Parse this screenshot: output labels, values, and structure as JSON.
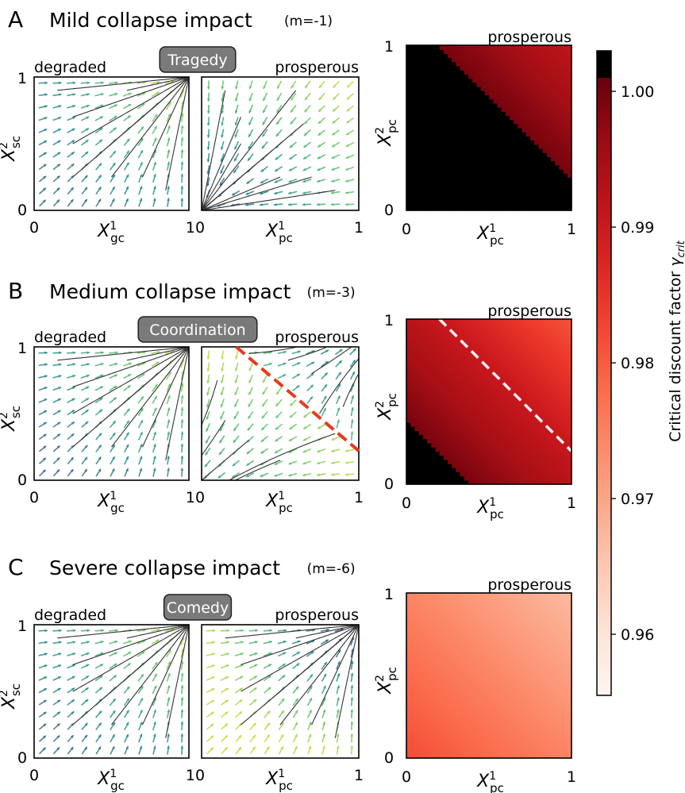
{
  "colors": {
    "badge_fill": "#7a7a7a",
    "separatrix": "#e8391d",
    "threshold": "#f2f2f2",
    "saturated": "#000000",
    "colormap": "Reds"
  },
  "panels": [
    {
      "letter": "A",
      "title": "Mild collapse impact",
      "m_label": "(m=-1)",
      "badge": "Tragedy"
    },
    {
      "letter": "B",
      "title": "Medium collapse impact",
      "m_label": "(m=-3)",
      "badge": "Coordination"
    },
    {
      "letter": "C",
      "title": "Severe collapse impact",
      "m_label": "(m=-6)",
      "badge": "Comedy"
    }
  ],
  "labels": {
    "degraded": "degraded",
    "prosperous": "prosperous",
    "x_gc": [
      "X",
      "gc",
      "1"
    ],
    "x_pc": [
      "X",
      "pc",
      "1"
    ],
    "y_sc": [
      "X",
      "sc",
      "2"
    ],
    "y_pc": [
      "X",
      "pc",
      "2"
    ]
  },
  "ticks": {
    "zero": "0",
    "one": "1",
    "ten": "10"
  },
  "colorbar": {
    "label": "Critical discount factor",
    "symbol": "γ",
    "subscript": "crit",
    "ticks": [
      "1.00",
      "0.99",
      "0.98",
      "0.97",
      "0.96"
    ],
    "tick_values": [
      1.0,
      0.99,
      0.98,
      0.97,
      0.96
    ],
    "range": [
      0.9555,
      1.001
    ]
  },
  "chart_data": [
    {
      "type": "heatmap",
      "panel": "A",
      "xlabel": "X^1_pc",
      "ylabel": "X^2_pc",
      "xlim": [
        0,
        1
      ],
      "ylim": [
        0,
        1
      ],
      "black_region": "x1 + x2 < 1.2",
      "corner_values": {
        "x1_0_x2_1": 0.9995,
        "x1_1_x2_1": 0.9915,
        "x1_1_x2_0.2": 0.9995
      },
      "threshold_line": null
    },
    {
      "type": "heatmap",
      "panel": "B",
      "xlabel": "X^1_pc",
      "ylabel": "X^2_pc",
      "xlim": [
        0,
        1
      ],
      "ylim": [
        0,
        1
      ],
      "black_region": "x1 + x2 < 0.38",
      "corner_values": {
        "x1_0_x2_0.38": 0.9995,
        "x1_1_x2_1": 0.981
      },
      "threshold_line": {
        "x": [
          0.2,
          1.0
        ],
        "y": [
          1.0,
          0.2
        ]
      }
    },
    {
      "type": "heatmap",
      "panel": "C",
      "xlabel": "X^1_pc",
      "ylabel": "X^2_pc",
      "xlim": [
        0,
        1
      ],
      "ylim": [
        0,
        1
      ],
      "black_region": null,
      "corner_values": {
        "x1_0_x2_0": 0.982,
        "x1_1_x2_1": 0.967
      },
      "threshold_line": null
    }
  ],
  "flow_data": [
    {
      "panel": "A",
      "left": "degraded: all flow to (1,1)",
      "right": "prosperous: all flow to (0,0)"
    },
    {
      "panel": "B",
      "left": "degraded: all flow to (1,1)",
      "right": "prosperous: bistable, separatrix from (0.25,1) to (1,0.2)"
    },
    {
      "panel": "C",
      "left": "degraded: all flow to (1,1)",
      "right": "prosperous: all flow to (1,1)"
    }
  ]
}
